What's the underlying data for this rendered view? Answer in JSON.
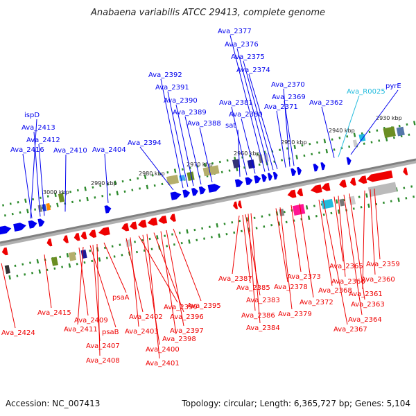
{
  "title": "Anabaena variabilis ATCC 29413, complete genome",
  "footer": {
    "accession": "Accession: NC_007413",
    "summary": "Topology: circular; Length: 6,365,727 bp; Genes: 5,104"
  },
  "colors": {
    "forward": "#0000ee",
    "reverse": "#ee0000",
    "rna": "#22bbdd",
    "backbone": "#808080",
    "tick": "#2e8b2e"
  },
  "ticks": [
    "3000 kbp",
    "2990 kbp",
    "2980 kbp",
    "2970 kbp",
    "2960 kbp",
    "2950 kbp",
    "2940 kbp",
    "2930 kbp"
  ],
  "top_labels": [
    "ispD",
    "Ava_2413",
    "Ava_2412",
    "Ava_2416",
    "Ava_2410",
    "Ava_2404",
    "Ava_2394",
    "Ava_2392",
    "Ava_2391",
    "Ava_2390",
    "Ava_2389",
    "Ava_2388",
    "Ava_2377",
    "Ava_2376",
    "Ava_2375",
    "Ava_2374",
    "Ava_2381",
    "Ava_2380",
    "sat",
    "Ava_2370",
    "Ava_2369",
    "Ava_2371",
    "Ava_R0025",
    "Ava_2362",
    "pyrE"
  ],
  "bottom_labels": [
    "Ava_2424",
    "Ava_2415",
    "Ava_2409",
    "Ava_2411",
    "psaB",
    "Ava_2407",
    "Ava_2408",
    "psaA",
    "Ava_2402",
    "Ava_2403",
    "Ava_2399",
    "Ava_2400",
    "Ava_2401",
    "Ava_2396",
    "Ava_2398",
    "Ava_2397",
    "Ava_2395",
    "Ava_2387",
    "Ava_2385",
    "Ava_2383",
    "Ava_2386",
    "Ava_2384",
    "Ava_2378",
    "Ava_2379",
    "Ava_2373",
    "Ava_2372",
    "Ava_2368",
    "Ava_2365",
    "Ava_2366",
    "Ava_2364",
    "Ava_2367",
    "Ava_2363",
    "Ava_2359",
    "Ava_2360",
    "Ava_2361"
  ]
}
